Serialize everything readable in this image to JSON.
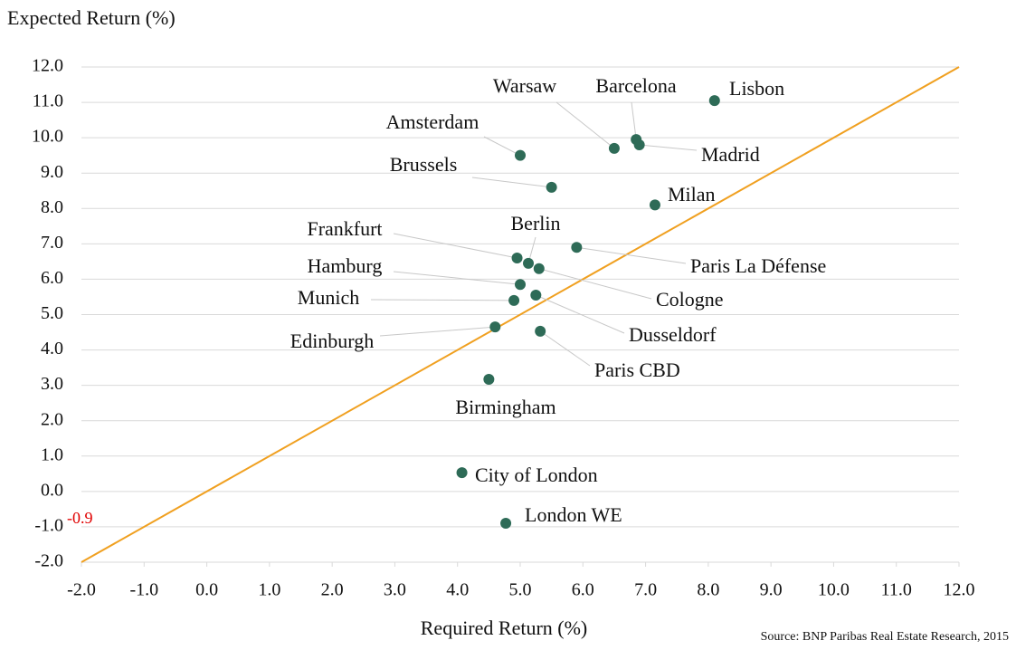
{
  "chart_data": {
    "type": "scatter",
    "y_axis_title": "Expected Return (%)",
    "x_axis_title": "Required Return (%)",
    "source": "Source: BNP Paribas Real Estate Research, 2015",
    "annotation": "-0.9",
    "annotation_color": "#e00000",
    "color": "#2e6b57",
    "reference_line_color": "#f0a020",
    "grid": true,
    "labels": [
      "Lisbon",
      "Barcelona",
      "Madrid",
      "Warsaw",
      "Amsterdam",
      "Brussels",
      "Milan",
      "Paris La Défense",
      "Frankfurt",
      "Berlin",
      "Cologne",
      "Hamburg",
      "Munich",
      "Dusseldorf",
      "Edinburgh",
      "Paris CBD",
      "Birmingham",
      "City of London",
      "London WE"
    ],
    "x": [
      8.1,
      6.85,
      6.9,
      6.5,
      5.0,
      5.5,
      7.15,
      5.9,
      4.95,
      5.13,
      5.3,
      5.0,
      4.9,
      5.25,
      4.6,
      5.32,
      4.5,
      4.07,
      4.77
    ],
    "values": [
      11.05,
      9.95,
      9.8,
      9.7,
      9.5,
      8.6,
      8.1,
      6.9,
      6.6,
      6.45,
      6.3,
      5.85,
      5.4,
      5.55,
      4.65,
      4.53,
      3.17,
      0.53,
      -0.9
    ],
    "xlim": [
      -2,
      12
    ],
    "ylim": [
      -2,
      12
    ],
    "xticks": [
      {
        "value": -2,
        "label": "-2.0"
      },
      {
        "value": -1,
        "label": "-1.0"
      },
      {
        "value": 0,
        "label": "0.0"
      },
      {
        "value": 1,
        "label": "1.0"
      },
      {
        "value": 2,
        "label": "2.0"
      },
      {
        "value": 3,
        "label": "3.0"
      },
      {
        "value": 4,
        "label": "4.0"
      },
      {
        "value": 5,
        "label": "5.0"
      },
      {
        "value": 6,
        "label": "6.0"
      },
      {
        "value": 7,
        "label": "7.0"
      },
      {
        "value": 8,
        "label": "8.0"
      },
      {
        "value": 9,
        "label": "9.0"
      },
      {
        "value": 10,
        "label": "10.0"
      },
      {
        "value": 11,
        "label": "11.0"
      },
      {
        "value": 12,
        "label": "12.0"
      }
    ],
    "yticks": [
      {
        "value": -2,
        "label": "-2.0"
      },
      {
        "value": -1,
        "label": "-1.0"
      },
      {
        "value": 0,
        "label": "0.0"
      },
      {
        "value": 1,
        "label": "1.0"
      },
      {
        "value": 2,
        "label": "2.0"
      },
      {
        "value": 3,
        "label": "3.0"
      },
      {
        "value": 4,
        "label": "4.0"
      },
      {
        "value": 5,
        "label": "5.0"
      },
      {
        "value": 6,
        "label": "6.0"
      },
      {
        "value": 7,
        "label": "7.0"
      },
      {
        "value": 8,
        "label": "8.0"
      },
      {
        "value": 9,
        "label": "9.0"
      },
      {
        "value": 10,
        "label": "10.0"
      },
      {
        "value": 11,
        "label": "11.0"
      },
      {
        "value": 12,
        "label": "12.0"
      }
    ]
  }
}
